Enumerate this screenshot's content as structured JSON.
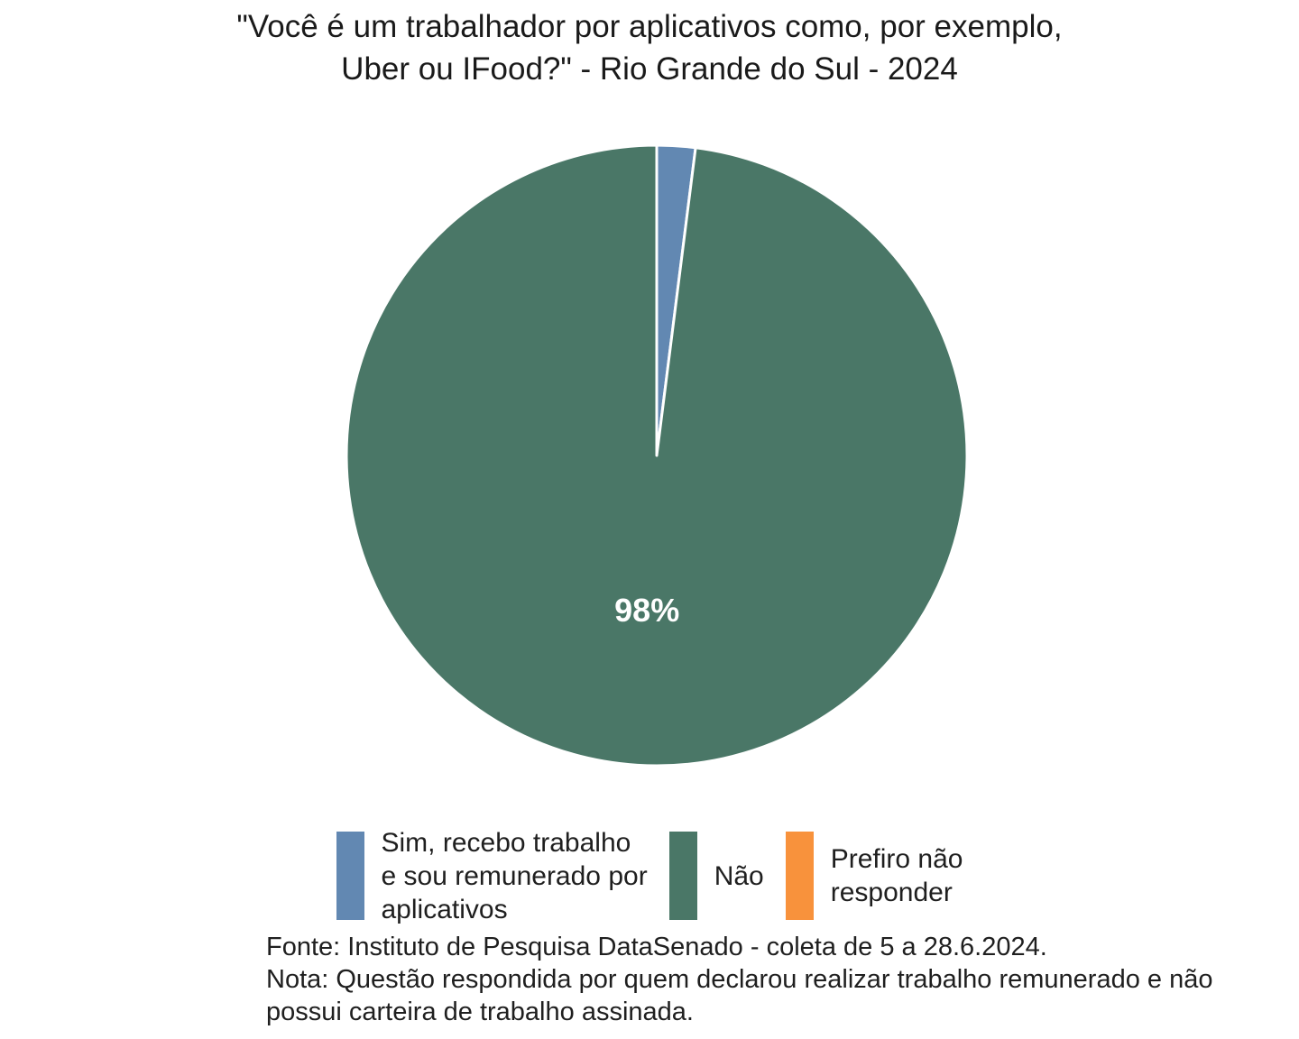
{
  "chart_data": {
    "type": "pie",
    "title": "\"Você é um trabalhador por aplicativos como, por exemplo,\nUber ou IFood?\" - Rio Grande do Sul - 2024",
    "unit": "percent",
    "start_angle_deg": 0,
    "direction": "clockwise",
    "legend_position": "bottom",
    "slice_border_color": "#ffffff",
    "label_color": "#ffffff",
    "slices": [
      {
        "label": "Sim, recebo trabalho e sou remunerado por aplicativos",
        "value": 2,
        "color": "#6288b2",
        "pct_label": ""
      },
      {
        "label": "Não",
        "value": 98,
        "color": "#4a7767",
        "pct_label": "98%"
      },
      {
        "label": "Prefiro não responder",
        "value": 0,
        "color": "#f8923c",
        "pct_label": ""
      }
    ]
  },
  "legend": {
    "items": [
      {
        "label": "Sim, recebo trabalho\ne sou remunerado por\naplicativos"
      },
      {
        "label": "Não"
      },
      {
        "label": "Prefiro não\nresponder"
      }
    ]
  },
  "caption": {
    "text": "Fonte: Instituto de Pesquisa DataSenado - coleta de 5 a 28.6.2024.\nNota: Questão respondida por quem declarou realizar trabalho remunerado e não\npossui carteira de trabalho assinada."
  }
}
